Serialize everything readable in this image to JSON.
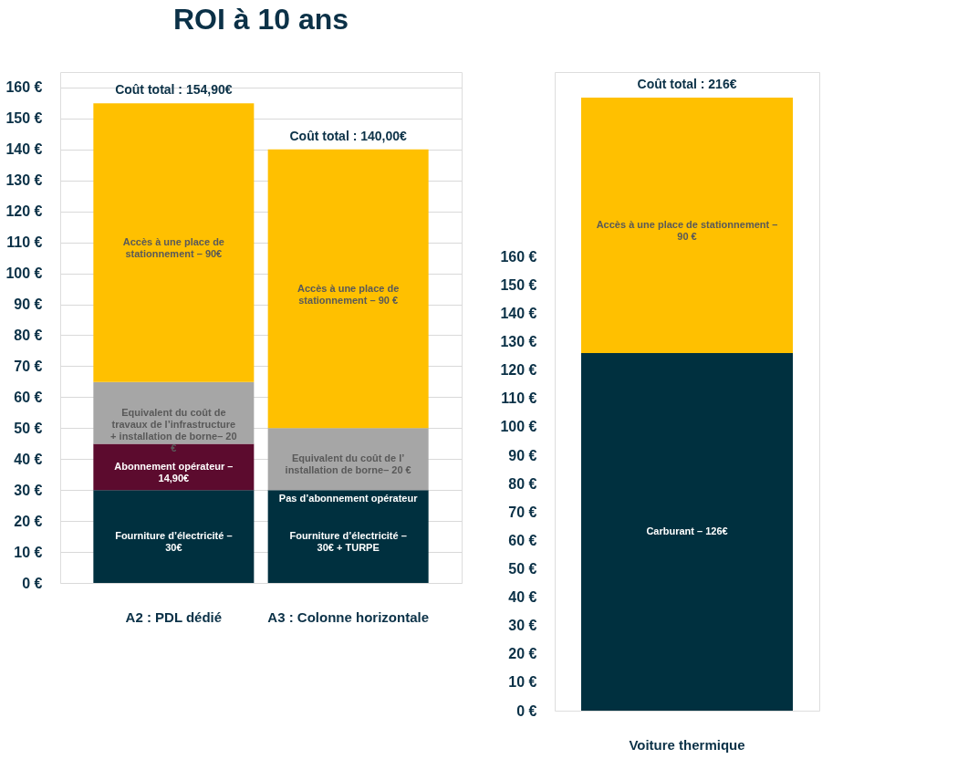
{
  "chart_data": [
    {
      "type": "bar",
      "title": "ROI à 10 ans",
      "stacked": true,
      "grid": "y",
      "categories": [
        "A2 : PDL dédié",
        "A3 : Colonne horizontale"
      ],
      "series": [
        {
          "color": "#00303f",
          "values": [
            30,
            30
          ]
        },
        {
          "color": "#5c0b2e",
          "values": [
            14.9,
            0
          ]
        },
        {
          "color": "#a6a6a6",
          "values": [
            20,
            20
          ]
        },
        {
          "color": "#ffc000",
          "values": [
            90,
            90
          ]
        }
      ],
      "annotations": [
        "Fourniture d’électricité – 30€",
        "Abonnement opérateur – 14,90€",
        "Equivalent du coût de travaux de l’infrastructure + installation de borne– 20 €",
        "Accès à une place de stationnement – 90€",
        "Fourniture d’électricité – 30€ + TURPE",
        "Pas d’abonnement opérateur",
        "Equivalent du coût de l’ installation de borne– 20 €",
        "Accès à une place de stationnement – 90 €"
      ],
      "totals": [
        "Coût total : 154,90€",
        "Coût total : 140,00€"
      ],
      "ylim": [
        0,
        165
      ],
      "yticks": [
        {
          "value": 0,
          "label": "0 €"
        },
        {
          "value": 10,
          "label": "10 €"
        },
        {
          "value": 20,
          "label": "20 €"
        },
        {
          "value": 30,
          "label": "30 €"
        },
        {
          "value": 40,
          "label": "40 €"
        },
        {
          "value": 50,
          "label": "50 €"
        },
        {
          "value": 60,
          "label": "60 €"
        },
        {
          "value": 70,
          "label": "70 €"
        },
        {
          "value": 80,
          "label": "80 €"
        },
        {
          "value": 90,
          "label": "90 €"
        },
        {
          "value": 100,
          "label": "100 €"
        },
        {
          "value": 110,
          "label": "110 €"
        },
        {
          "value": 120,
          "label": "120 €"
        },
        {
          "value": 130,
          "label": "130 €"
        },
        {
          "value": 140,
          "label": "140 €"
        },
        {
          "value": 150,
          "label": "150 €"
        },
        {
          "value": 160,
          "label": "160 €"
        }
      ]
    },
    {
      "type": "bar",
      "stacked": true,
      "categories": [
        "Voiture thermique"
      ],
      "series": [
        {
          "color": "#00303f",
          "values": [
            126
          ]
        },
        {
          "color": "#ffc000",
          "values": [
            90
          ]
        }
      ],
      "annotations": [
        "Carburant – 126€",
        "Accès à une place de stationnement – 90 €"
      ],
      "totals": [
        "Coût total : 216€"
      ],
      "ylim": [
        0,
        225
      ],
      "yticks": [
        {
          "value": 0,
          "label": "0 €"
        },
        {
          "value": 10,
          "label": "10 €"
        },
        {
          "value": 20,
          "label": "20 €"
        },
        {
          "value": 30,
          "label": "30 €"
        },
        {
          "value": 40,
          "label": "40 €"
        },
        {
          "value": 50,
          "label": "50 €"
        },
        {
          "value": 60,
          "label": "60 €"
        },
        {
          "value": 70,
          "label": "70 €"
        },
        {
          "value": 80,
          "label": "80 €"
        },
        {
          "value": 90,
          "label": "90 €"
        },
        {
          "value": 100,
          "label": "100 €"
        },
        {
          "value": 110,
          "label": "110 €"
        },
        {
          "value": 120,
          "label": "120 €"
        },
        {
          "value": 130,
          "label": "130 €"
        },
        {
          "value": 140,
          "label": "140 €"
        },
        {
          "value": 150,
          "label": "150 €"
        },
        {
          "value": 160,
          "label": "160 €"
        }
      ]
    }
  ]
}
